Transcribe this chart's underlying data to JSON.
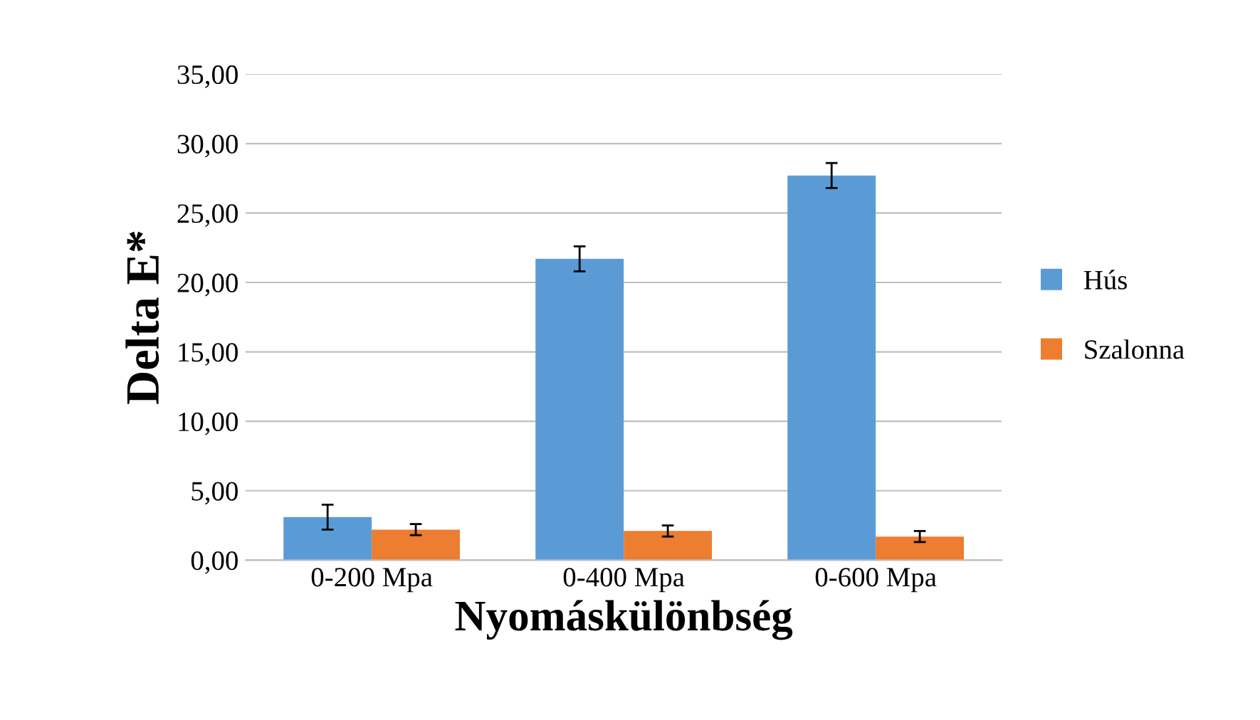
{
  "chart_data": {
    "type": "bar",
    "xlabel": "Nyomáskülönbség",
    "ylabel": "Delta E*",
    "categories": [
      "0-200 Mpa",
      "0-400 Mpa",
      "0-600 Mpa"
    ],
    "series": [
      {
        "name": "Hús",
        "color": "#5b9bd5",
        "values": [
          3.1,
          21.7,
          27.7
        ],
        "errors": [
          0.9,
          0.9,
          0.9
        ]
      },
      {
        "name": "Szalonna",
        "color": "#ed7d31",
        "values": [
          2.2,
          2.1,
          1.7
        ],
        "errors": [
          0.4,
          0.4,
          0.4
        ]
      }
    ],
    "ylim": [
      0,
      35
    ],
    "yticks": [
      {
        "value": 0,
        "label": "0,00"
      },
      {
        "value": 5,
        "label": "5,00"
      },
      {
        "value": 10,
        "label": "10,00"
      },
      {
        "value": 15,
        "label": "15,00"
      },
      {
        "value": 20,
        "label": "20,00"
      },
      {
        "value": 25,
        "label": "25,00"
      },
      {
        "value": 30,
        "label": "30,00"
      },
      {
        "value": 35,
        "label": "35,00"
      }
    ],
    "grid": "y",
    "legend": "right"
  }
}
